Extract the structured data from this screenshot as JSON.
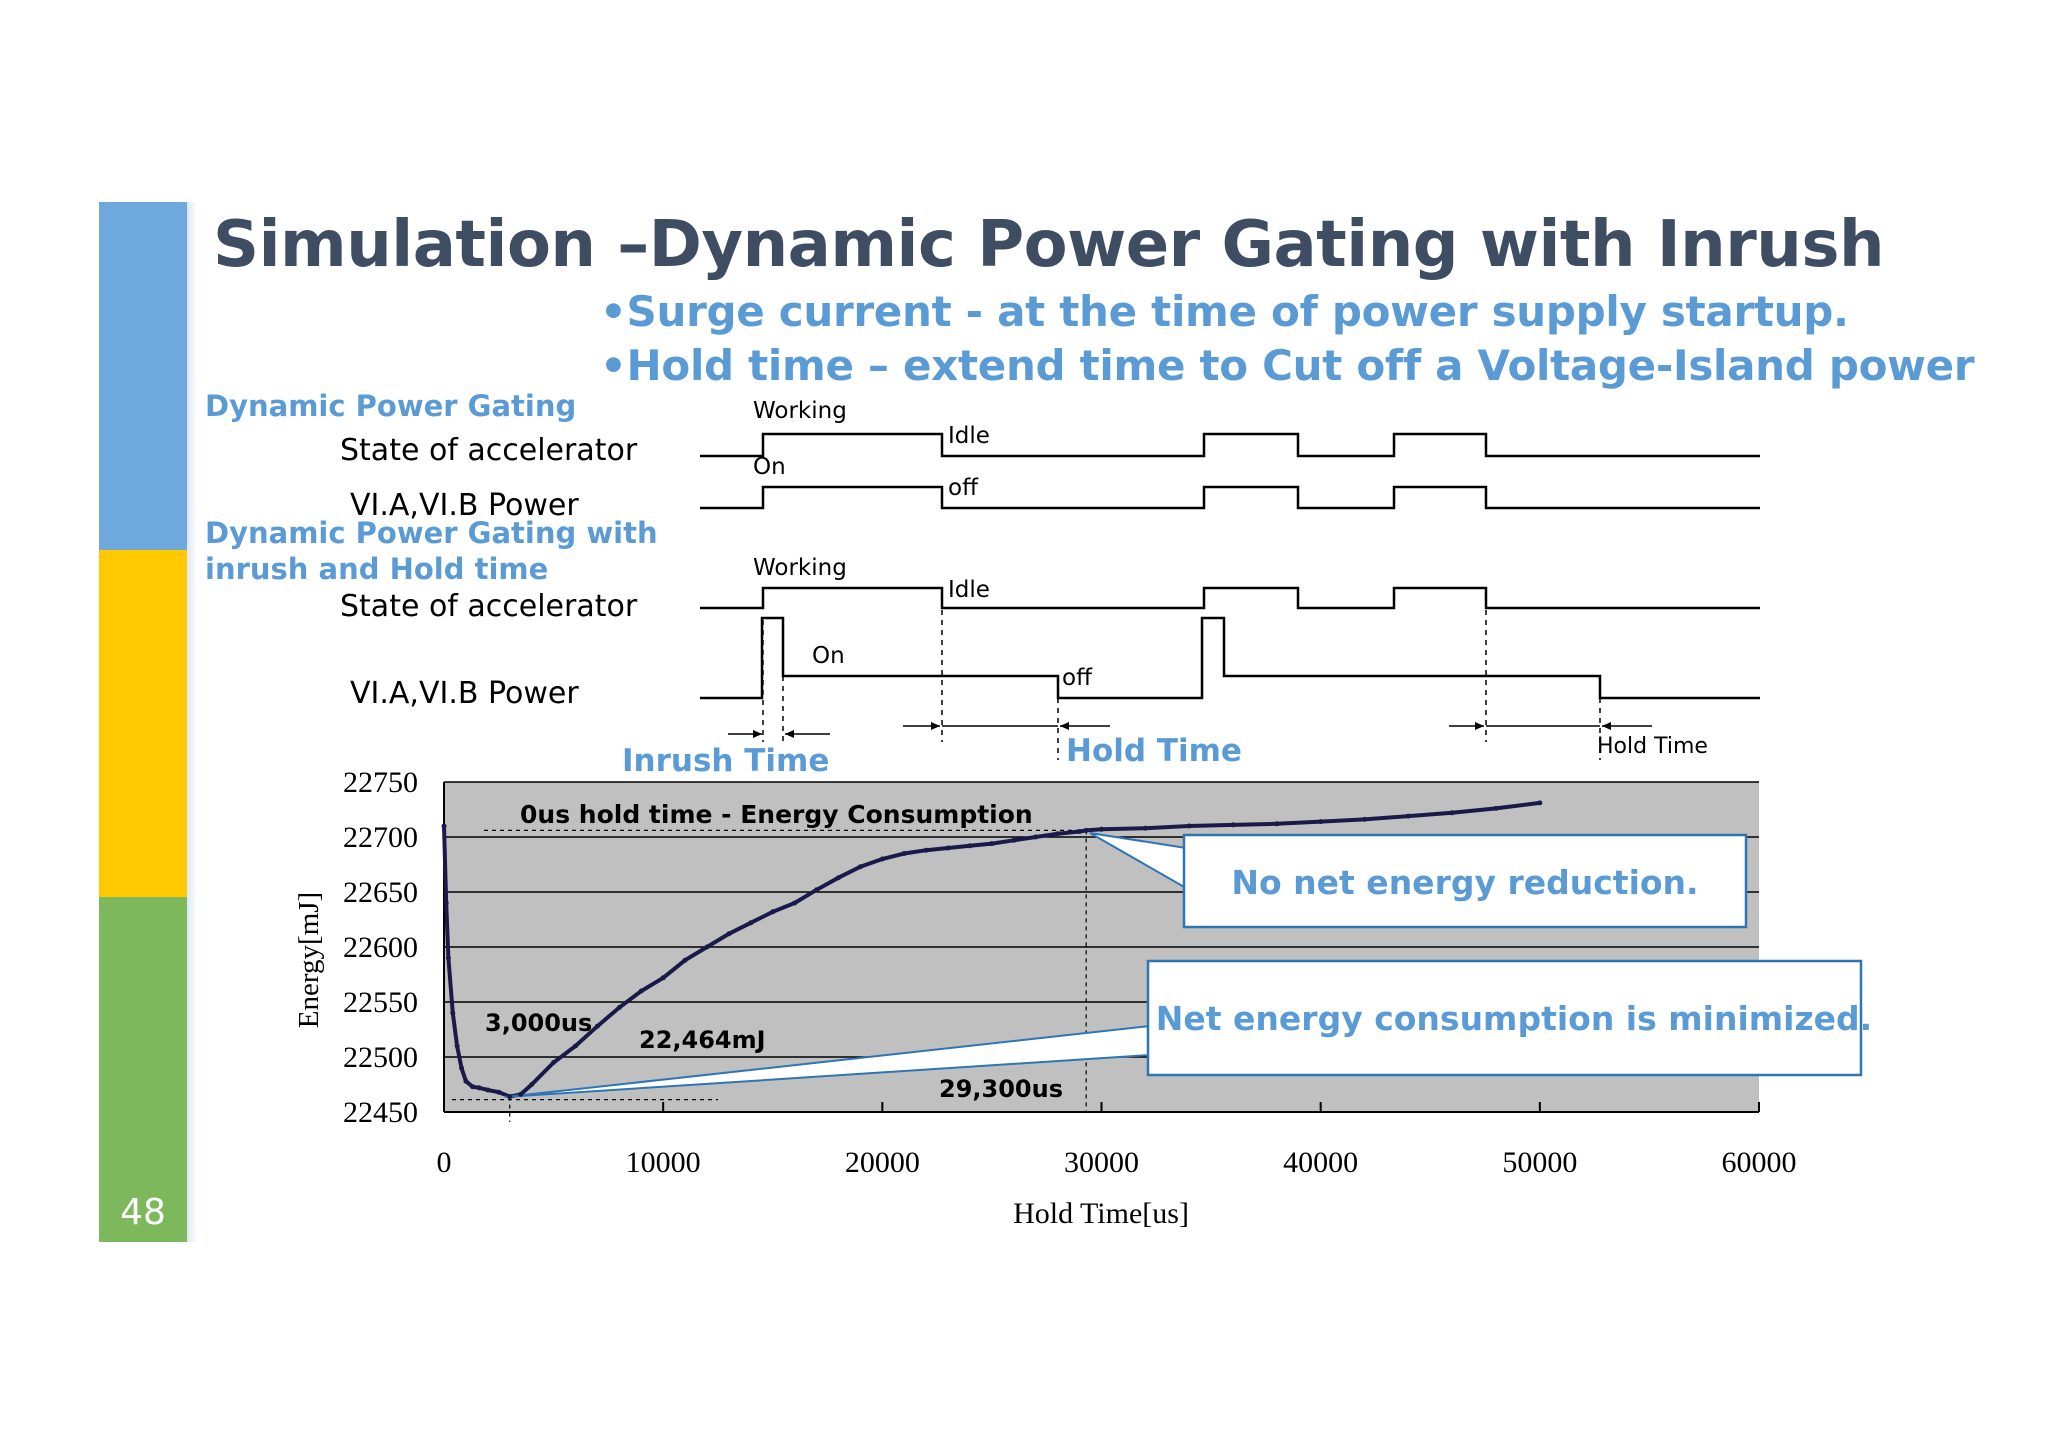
{
  "page_number": "48",
  "title": "Simulation –Dynamic Power Gating with Inrush",
  "bullets": [
    "•Surge current - at the time of power supply startup.",
    "•Hold time – extend time to Cut off a Voltage-Island power"
  ],
  "colors": {
    "sidebar_blue": "#6fa8dc",
    "sidebar_yellow": "#ffc800",
    "sidebar_green": "#7db95c",
    "accent": "#5b9bd5",
    "title": "#3f4d63",
    "plot_bg": "#c0c0c0",
    "line": "#1a1a4a"
  },
  "timing": {
    "section1_title": "Dynamic Power Gating",
    "section2_title_line1": "Dynamic Power Gating with",
    "section2_title_line2": "inrush and Hold time",
    "state_label": "State of  accelerator",
    "power_label": "VI.A,VI.B Power",
    "working": "Working",
    "idle": "Idle",
    "on": "On",
    "off": "off",
    "inrush_time": "Inrush Time",
    "hold_time_big": "Hold Time",
    "hold_time_small": "Hold Time"
  },
  "chart_data": {
    "type": "line",
    "title": "0us hold time - Energy Consumption",
    "xlabel": "Hold Time[us]",
    "ylabel": "Energy[mJ]",
    "xlim": [
      0,
      60000
    ],
    "ylim": [
      22450,
      22750
    ],
    "x_ticks": [
      "0",
      "10000",
      "20000",
      "30000",
      "40000",
      "50000",
      "60000"
    ],
    "y_ticks": [
      "22750",
      "22700",
      "22650",
      "22600",
      "22550",
      "22500",
      "22450"
    ],
    "series": [
      {
        "name": "Energy",
        "x": [
          0,
          100,
          200,
          400,
          600,
          800,
          1000,
          1300,
          1600,
          2000,
          2500,
          3000,
          3500,
          4000,
          5000,
          6000,
          7000,
          8000,
          9000,
          10000,
          11000,
          12000,
          13000,
          14000,
          15000,
          16000,
          17000,
          18000,
          19000,
          20000,
          21000,
          22000,
          23000,
          24000,
          25000,
          26000,
          27000,
          28000,
          29000,
          29300,
          30000,
          32000,
          34000,
          36000,
          38000,
          40000,
          42000,
          44000,
          46000,
          48000,
          50000
        ],
        "y": [
          22710,
          22640,
          22590,
          22540,
          22510,
          22490,
          22478,
          22473,
          22472,
          22470,
          22468,
          22464,
          22466,
          22475,
          22495,
          22510,
          22528,
          22545,
          22560,
          22572,
          22588,
          22600,
          22612,
          22622,
          22632,
          22640,
          22652,
          22663,
          22673,
          22680,
          22685,
          22688,
          22690,
          22692,
          22694,
          22697,
          22700,
          22703,
          22705,
          22706,
          22707,
          22708,
          22710,
          22711,
          22712,
          22714,
          22716,
          22719,
          22722,
          22726,
          22731
        ]
      }
    ],
    "annotations": {
      "min_x_label": "3,000us",
      "min_y_label": "22,464mJ",
      "break_even_label": "29,300us",
      "callout_top": "No net energy reduction.",
      "callout_bottom": "Net energy consumption is minimized."
    },
    "legend": "none"
  }
}
